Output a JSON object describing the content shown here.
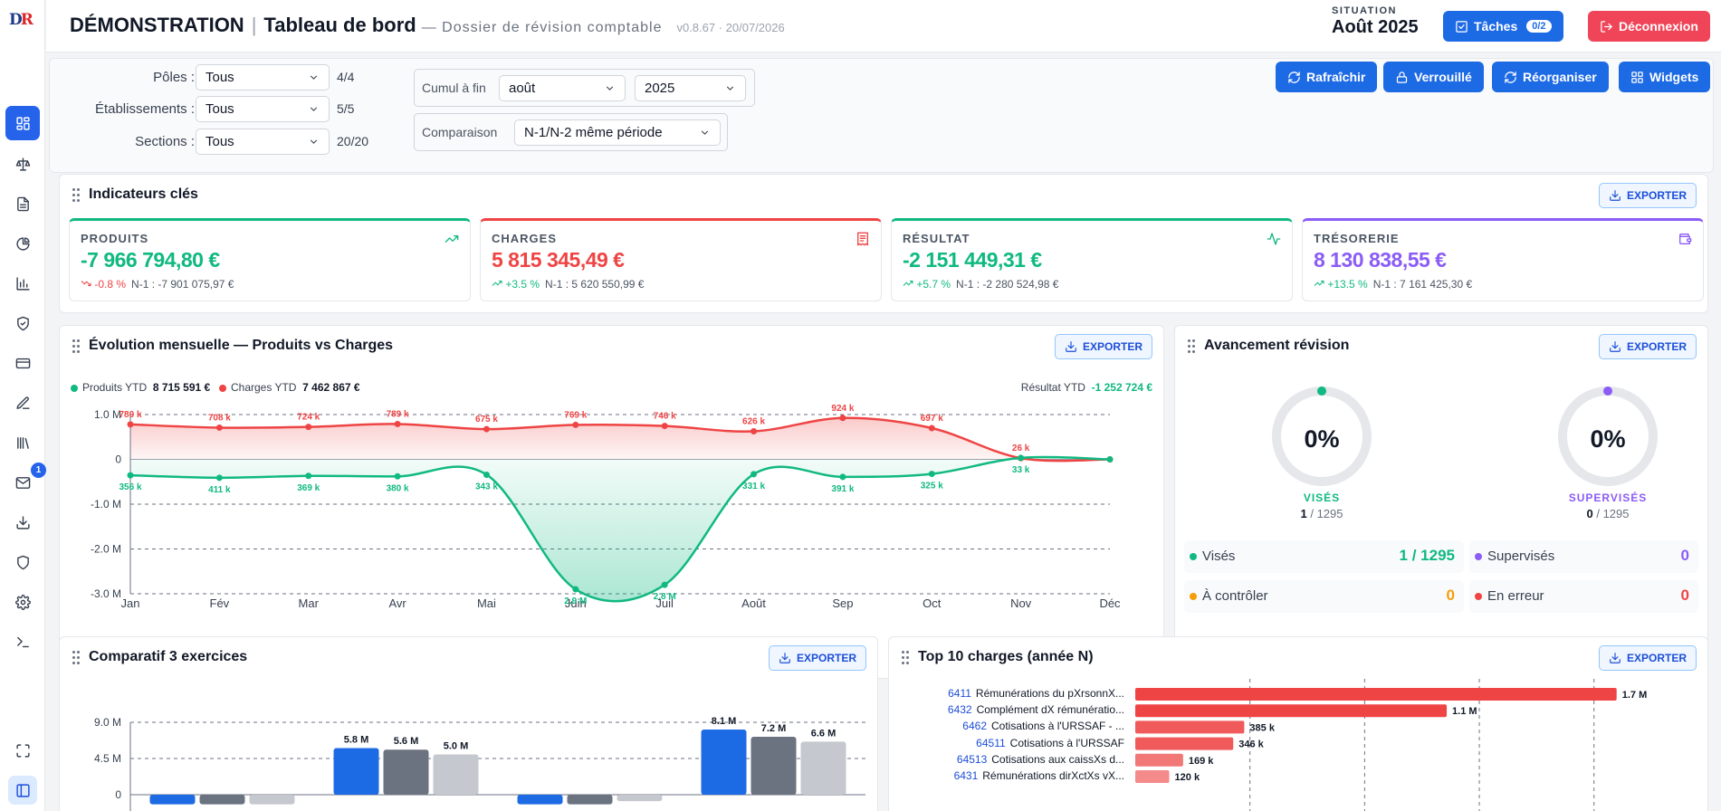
{
  "app": {
    "logo": "DR",
    "title": "DÉMONSTRATION",
    "subtitle": "Tableau de bord",
    "description": "— Dossier de révision comptable",
    "version": "v0.8.67 · 20/07/2026"
  },
  "situation": {
    "label": "SITUATION",
    "value": "Août 2025"
  },
  "header_buttons": {
    "taches": "Tâches",
    "taches_count": "0/2",
    "deconnexion": "Déconnexion"
  },
  "sidebar": {
    "icons": [
      "dashboard-icon",
      "balance-icon",
      "document-icon",
      "pie-chart-icon",
      "bar-chart-icon",
      "shield-check-icon",
      "card-icon",
      "pen-icon",
      "library-icon",
      "mail-icon",
      "download-icon",
      "shield-icon",
      "gear-icon",
      "terminal-icon",
      "expand-icon",
      "sidebar-toggle-icon"
    ],
    "mail_badge": "1"
  },
  "filters": {
    "poles": {
      "label": "Pôles :",
      "value": "Tous",
      "count": "4/4"
    },
    "etablissements": {
      "label": "Établissements :",
      "value": "Tous",
      "count": "5/5"
    },
    "sections": {
      "label": "Sections :",
      "value": "Tous",
      "count": "20/20"
    },
    "cumul": {
      "label": "Cumul à fin",
      "month": "août",
      "year": "2025"
    },
    "comparaison": {
      "label": "Comparaison",
      "value": "N-1/N-2 même période"
    }
  },
  "toolbar": {
    "rafraichir": "Rafraîchir",
    "verrouille": "Verrouillé",
    "reorganiser": "Réorganiser",
    "widgets": "Widgets"
  },
  "export_label": "EXPORTER",
  "kpis": {
    "title": "Indicateurs clés",
    "items": [
      {
        "label": "PRODUITS",
        "value": "-7 966 794,80 €",
        "delta": "-0.8 %",
        "prev": "N-1 : -7 901 075,97 €",
        "color": "#10b981",
        "delta_color": "#ef4444",
        "icon": "trending-up-icon"
      },
      {
        "label": "CHARGES",
        "value": "5 815 345,49 €",
        "delta": "+3.5 %",
        "prev": "N-1 : 5 620 550,99 €",
        "color": "#ef4444",
        "delta_color": "#10b981",
        "icon": "receipt-icon"
      },
      {
        "label": "RÉSULTAT",
        "value": "-2 151 449,31 €",
        "delta": "+5.7 %",
        "prev": "N-1 : -2 280 524,98 €",
        "color": "#10b981",
        "delta_color": "#10b981",
        "icon": "activity-icon"
      },
      {
        "label": "TRÉSORERIE",
        "value": "8 130 838,55 €",
        "delta": "+13.5 %",
        "prev": "N-1 : 7 161 425,30 €",
        "color": "#8b5cf6",
        "delta_color": "#10b981",
        "icon": "wallet-icon"
      }
    ]
  },
  "evolution": {
    "title": "Évolution mensuelle — Produits vs Charges",
    "legend": {
      "produits_label": "Produits YTD",
      "produits_value": "8 715 591 €",
      "charges_label": "Charges YTD",
      "charges_value": "7 462 867 €",
      "resultat_label": "Résultat YTD",
      "resultat_value": "-1 252 724 €"
    }
  },
  "avancement": {
    "title": "Avancement révision",
    "vises": {
      "pct": "0%",
      "label": "VISÉS",
      "done": "1",
      "total": "/ 1295",
      "color": "#10b981"
    },
    "supervises": {
      "pct": "0%",
      "label": "SUPERVISÉS",
      "done": "0",
      "total": "/ 1295",
      "color": "#8b5cf6"
    },
    "stats": [
      {
        "name": "Visés",
        "value": "1 / 1295",
        "color": "#10b981"
      },
      {
        "name": "Supervisés",
        "value": "0",
        "color": "#8b5cf6"
      },
      {
        "name": "À contrôler",
        "value": "0",
        "color": "#f59e0b"
      },
      {
        "name": "En erreur",
        "value": "0",
        "color": "#ef4444"
      }
    ]
  },
  "comparatif": {
    "title": "Comparatif 3 exercices"
  },
  "top10": {
    "title": "Top 10 charges (année N)"
  },
  "chart_data": [
    {
      "type": "line",
      "categories": [
        "Jan",
        "Fév",
        "Mar",
        "Avr",
        "Mai",
        "Juin",
        "Juil",
        "Août",
        "Sep",
        "Oct",
        "Nov",
        "Déc"
      ],
      "series": [
        {
          "name": "Charges",
          "color": "#ef4444",
          "values": [
            780000,
            708000,
            724000,
            789000,
            675000,
            769000,
            746000,
            626000,
            924000,
            697000,
            26000,
            0
          ],
          "labels": [
            "780 k",
            "708 k",
            "724 k",
            "789 k",
            "675 k",
            "769 k",
            "746 k",
            "626 k",
            "924 k",
            "697 k",
            "26 k",
            ""
          ]
        },
        {
          "name": "Produits",
          "color": "#10b981",
          "values": [
            -356000,
            -411000,
            -369000,
            -380000,
            -343000,
            -2900000,
            -2800000,
            -331000,
            -391000,
            -325000,
            33000,
            0
          ],
          "labels": [
            "356 k",
            "411 k",
            "369 k",
            "380 k",
            "343 k",
            "2.9 M",
            "2.8 M",
            "331 k",
            "391 k",
            "325 k",
            "33 k",
            ""
          ]
        }
      ],
      "ylim": [
        -3000000,
        1000000
      ],
      "yticks": [
        "1.0 M",
        "0",
        "-1.0 M",
        "-2.0 M",
        "-3.0 M"
      ],
      "ytick_values": [
        1000000,
        0,
        -1000000,
        -2000000,
        -3000000
      ],
      "grid": true
    },
    {
      "type": "bar",
      "series": [
        {
          "color": "#1d6ae5",
          "values": [
            -1200000,
            5800000,
            -1200000,
            8100000
          ],
          "labels": [
            "",
            "5.8 M",
            "",
            "8.1 M"
          ]
        },
        {
          "color": "#6b7280",
          "values": [
            -1200000,
            5600000,
            -1200000,
            7200000
          ],
          "labels": [
            "",
            "5.6 M",
            "",
            "7.2 M"
          ]
        },
        {
          "color": "#c5c8ce",
          "values": [
            -1200000,
            5000000,
            -800000,
            6600000
          ],
          "labels": [
            "",
            "5.0 M",
            "",
            "6.6 M"
          ]
        }
      ],
      "ylim": [
        -1500000,
        9000000
      ],
      "yticks": [
        "9.0 M",
        "4.5 M",
        "0"
      ],
      "ytick_values": [
        9000000,
        4500000,
        0
      ],
      "grid": true
    },
    {
      "type": "bar",
      "orientation": "horizontal",
      "categories": [
        {
          "code": "6411",
          "name": "Rémunérations du pXrsonnX..."
        },
        {
          "code": "6432",
          "name": "Complément dX rémunératio..."
        },
        {
          "code": "6462",
          "name": "Cotisations à l'URSSAF - ..."
        },
        {
          "code": "64511",
          "name": "Cotisations à l'URSSAF"
        },
        {
          "code": "64513",
          "name": "Cotisations aux caissXs d..."
        },
        {
          "code": "6431",
          "name": "Rémunérations dirXctXs vX..."
        }
      ],
      "values": [
        1700000,
        1100000,
        385000,
        346000,
        169000,
        120000
      ],
      "labels": [
        "1.7 M",
        "1.1 M",
        "385 k",
        "346 k",
        "169 k",
        "120 k"
      ],
      "xlim": [
        0,
        1800000
      ],
      "grid": true
    }
  ]
}
